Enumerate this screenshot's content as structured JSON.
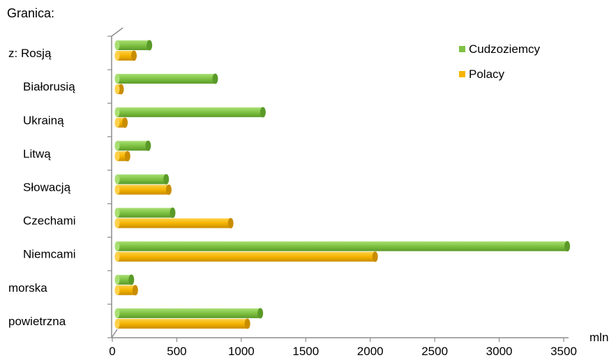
{
  "chart_data": {
    "type": "bar",
    "orientation": "horizontal",
    "title": "Granica:",
    "xlabel": "mln",
    "ylabel": "",
    "categories": [
      "z: Rosją",
      "Białorusią",
      "Ukrainą",
      "Litwą",
      "Słowacją",
      "Czechami",
      "Niemcami",
      "morska",
      "powietrzna"
    ],
    "category_indent": [
      false,
      true,
      true,
      true,
      true,
      true,
      true,
      false,
      false
    ],
    "series": [
      {
        "name": "Cudzoziemcy",
        "color": "#7fc243",
        "values": [
          250,
          760,
          1130,
          240,
          380,
          430,
          3490,
          110,
          1110
        ]
      },
      {
        "name": "Polacy",
        "color": "#f5b400",
        "values": [
          130,
          30,
          60,
          80,
          400,
          880,
          2000,
          140,
          1010
        ]
      }
    ],
    "xlim": [
      0,
      3500
    ],
    "xticks": [
      "0",
      "500",
      "1000",
      "1500",
      "2000",
      "2500",
      "3000",
      "3500"
    ],
    "grid": false,
    "legend_position": "top-right"
  }
}
